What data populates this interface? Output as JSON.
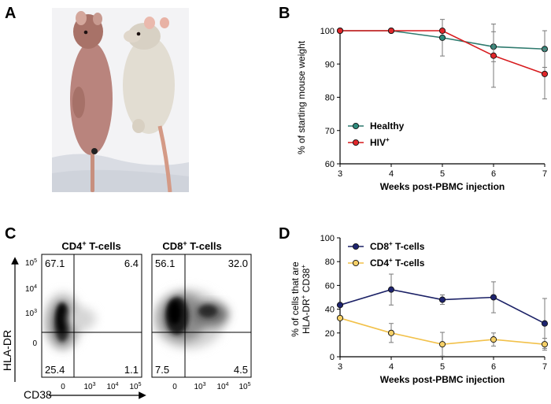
{
  "panels": {
    "a": "A",
    "b": "B",
    "c": "C",
    "d": "D"
  },
  "photo": {
    "subjects": [
      "hairless-mouse",
      "furred-mouse"
    ],
    "colors": {
      "background": "#f3f3f5",
      "mouse_left": "#b9847d",
      "mouse_right": "#e2ddd2",
      "tails": "#d49a86",
      "cloth_shadow": "#d9dce3"
    }
  },
  "panel_c": {
    "titles": [
      {
        "main": "CD4",
        "sup": "+",
        "rest": " T-cells"
      },
      {
        "main": "CD8",
        "sup": "+",
        "rest": " T-cells"
      }
    ],
    "y_axis_label": "HLA-DR",
    "x_axis_label": "CD38",
    "y_ticks": [
      {
        "base": "10",
        "exp": "5"
      },
      {
        "base": "10",
        "exp": "4"
      },
      {
        "base": "10",
        "exp": "3"
      },
      {
        "base": "0",
        "exp": ""
      }
    ],
    "x_ticks": [
      {
        "base": "0",
        "exp": ""
      },
      {
        "base": "10",
        "exp": "3"
      },
      {
        "base": "10",
        "exp": "4"
      },
      {
        "base": "10",
        "exp": "5"
      }
    ],
    "plots": [
      {
        "q_upper_left": "67.1",
        "q_upper_right": "6.4",
        "q_lower_left": "25.4",
        "q_lower_right": "1.1"
      },
      {
        "q_upper_left": "56.1",
        "q_upper_right": "32.0",
        "q_lower_left": "7.5",
        "q_lower_right": "4.5"
      }
    ]
  },
  "chart_data": [
    {
      "panel": "B",
      "type": "line",
      "xlabel": "Weeks post-PBMC injection",
      "ylabel": "% of starting mouse weight",
      "x": [
        3,
        4,
        5,
        6,
        7
      ],
      "xlim": [
        3,
        7
      ],
      "ylim": [
        60,
        100
      ],
      "x_ticks": [
        "3",
        "4",
        "5",
        "6",
        "7"
      ],
      "y_ticks": [
        "60",
        "70",
        "80",
        "90",
        "100"
      ],
      "legend_position": "bottom-left",
      "series": [
        {
          "name": "Healthy",
          "name_sup": "",
          "color": "#2e7a6e",
          "marker_fill": "#2e8a7c",
          "values": [
            100,
            100,
            97.9,
            95.2,
            94.5
          ],
          "error": [
            0,
            0,
            5.5,
            4.5,
            5.5
          ]
        },
        {
          "name": "HIV",
          "name_sup": "+",
          "color": "#d7191c",
          "marker_fill": "#e0262a",
          "values": [
            100,
            100,
            100,
            92.5,
            87
          ],
          "error": [
            0,
            0,
            0,
            9.5,
            7.5
          ]
        }
      ]
    },
    {
      "panel": "D",
      "type": "line",
      "xlabel": "Weeks post-PBMC injection",
      "ylabel_line1": "% of cells that are",
      "ylabel_line2": "HLA-DR",
      "ylabel_line2_sup1": "+",
      "ylabel_line2_rest": " CD38",
      "ylabel_line2_sup2": "+",
      "x": [
        3,
        4,
        5,
        6,
        7
      ],
      "xlim": [
        3,
        7
      ],
      "ylim": [
        0,
        100
      ],
      "x_ticks": [
        "3",
        "4",
        "5",
        "6",
        "7"
      ],
      "y_ticks": [
        "0",
        "20",
        "40",
        "60",
        "80",
        "100"
      ],
      "legend_position": "top-left",
      "series": [
        {
          "name": "CD8",
          "name_sup": "+",
          "name_rest": " T-cells",
          "color": "#1b2166",
          "marker_fill": "#1e2470",
          "values": [
            43.5,
            56.5,
            48,
            50,
            28
          ],
          "error": [
            0,
            13,
            4,
            13,
            21
          ]
        },
        {
          "name": "CD4",
          "name_sup": "+",
          "name_rest": " T-cells",
          "color": "#f2c14a",
          "marker_fill": "#f6d067",
          "values": [
            32.5,
            20,
            10.5,
            14.5,
            10.5
          ],
          "error": [
            0,
            8,
            10,
            5.5,
            5
          ]
        }
      ]
    }
  ]
}
